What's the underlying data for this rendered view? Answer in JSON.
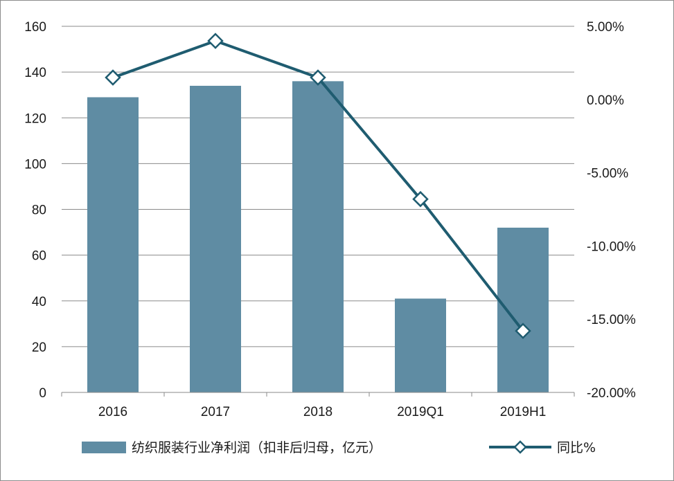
{
  "chart_data": {
    "type": "bar+line",
    "categories": [
      "2016",
      "2017",
      "2018",
      "2019Q1",
      "2019H1"
    ],
    "series": [
      {
        "name": "纺织服装行业净利润（扣非后归母，亿元）",
        "type": "bar",
        "axis": "left",
        "color": "#5f8ca3",
        "values": [
          129,
          134,
          136,
          41,
          72
        ]
      },
      {
        "name": "同比%",
        "type": "line",
        "axis": "right",
        "color": "#1f5c70",
        "marker": "diamond-open",
        "values": [
          1.5,
          4.0,
          1.5,
          -6.8,
          -15.8
        ]
      }
    ],
    "y_left": {
      "min": 0,
      "max": 160,
      "ticks": [
        "0",
        "20",
        "40",
        "60",
        "80",
        "100",
        "120",
        "140",
        "160"
      ]
    },
    "y_right": {
      "min": -20,
      "max": 5,
      "ticks": [
        "-20.00%",
        "-15.00%",
        "-10.00%",
        "-5.00%",
        "0.00%",
        "5.00%"
      ]
    },
    "grid": true,
    "legend_position": "bottom"
  }
}
